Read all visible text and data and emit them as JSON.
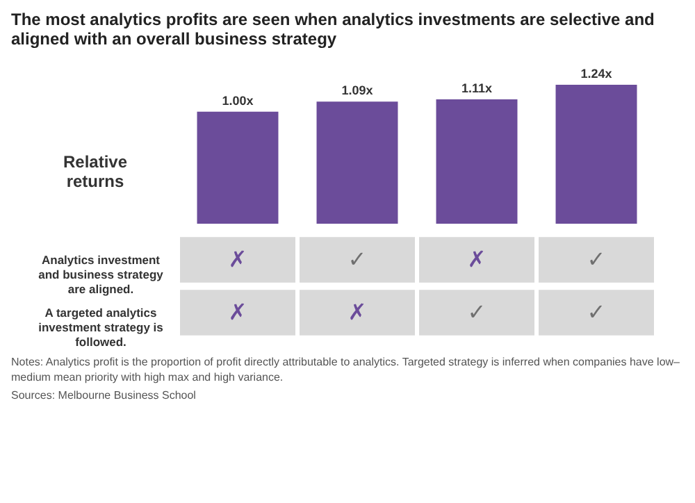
{
  "chart_data": [
    {
      "type": "bar",
      "title": "The most analytics profits are seen when analytics investments are selective and aligned with an overall business strategy",
      "ylabel": "Relative returns",
      "categories": [
        null,
        null,
        null,
        null
      ],
      "values": [
        1.0,
        1.09,
        1.11,
        1.24
      ],
      "value_labels": [
        "1.00x",
        "1.09x",
        "1.11x",
        "1.24x"
      ],
      "color": "#6b4c9a"
    },
    {
      "type": "heatmap",
      "categories": [
        null,
        null,
        null,
        null
      ],
      "y_categories": [
        "Analytics investment and business strategy are aligned.",
        "A targeted analytics investment strategy is followed."
      ],
      "cells": [
        [
          "✗",
          "✓",
          "✗",
          "✓"
        ],
        [
          "✗",
          "✗",
          "✓",
          "✓"
        ]
      ],
      "colors": [
        "#6b4c9a",
        "#707070"
      ],
      "annotations": [
        "Notes: Analytics profit is the proportion of profit directly attributable to analytics. Targeted strategy is inferred when companies have low–medium mean priority with high max and high variance.",
        "Sources: Melbourne Business School"
      ]
    }
  ]
}
